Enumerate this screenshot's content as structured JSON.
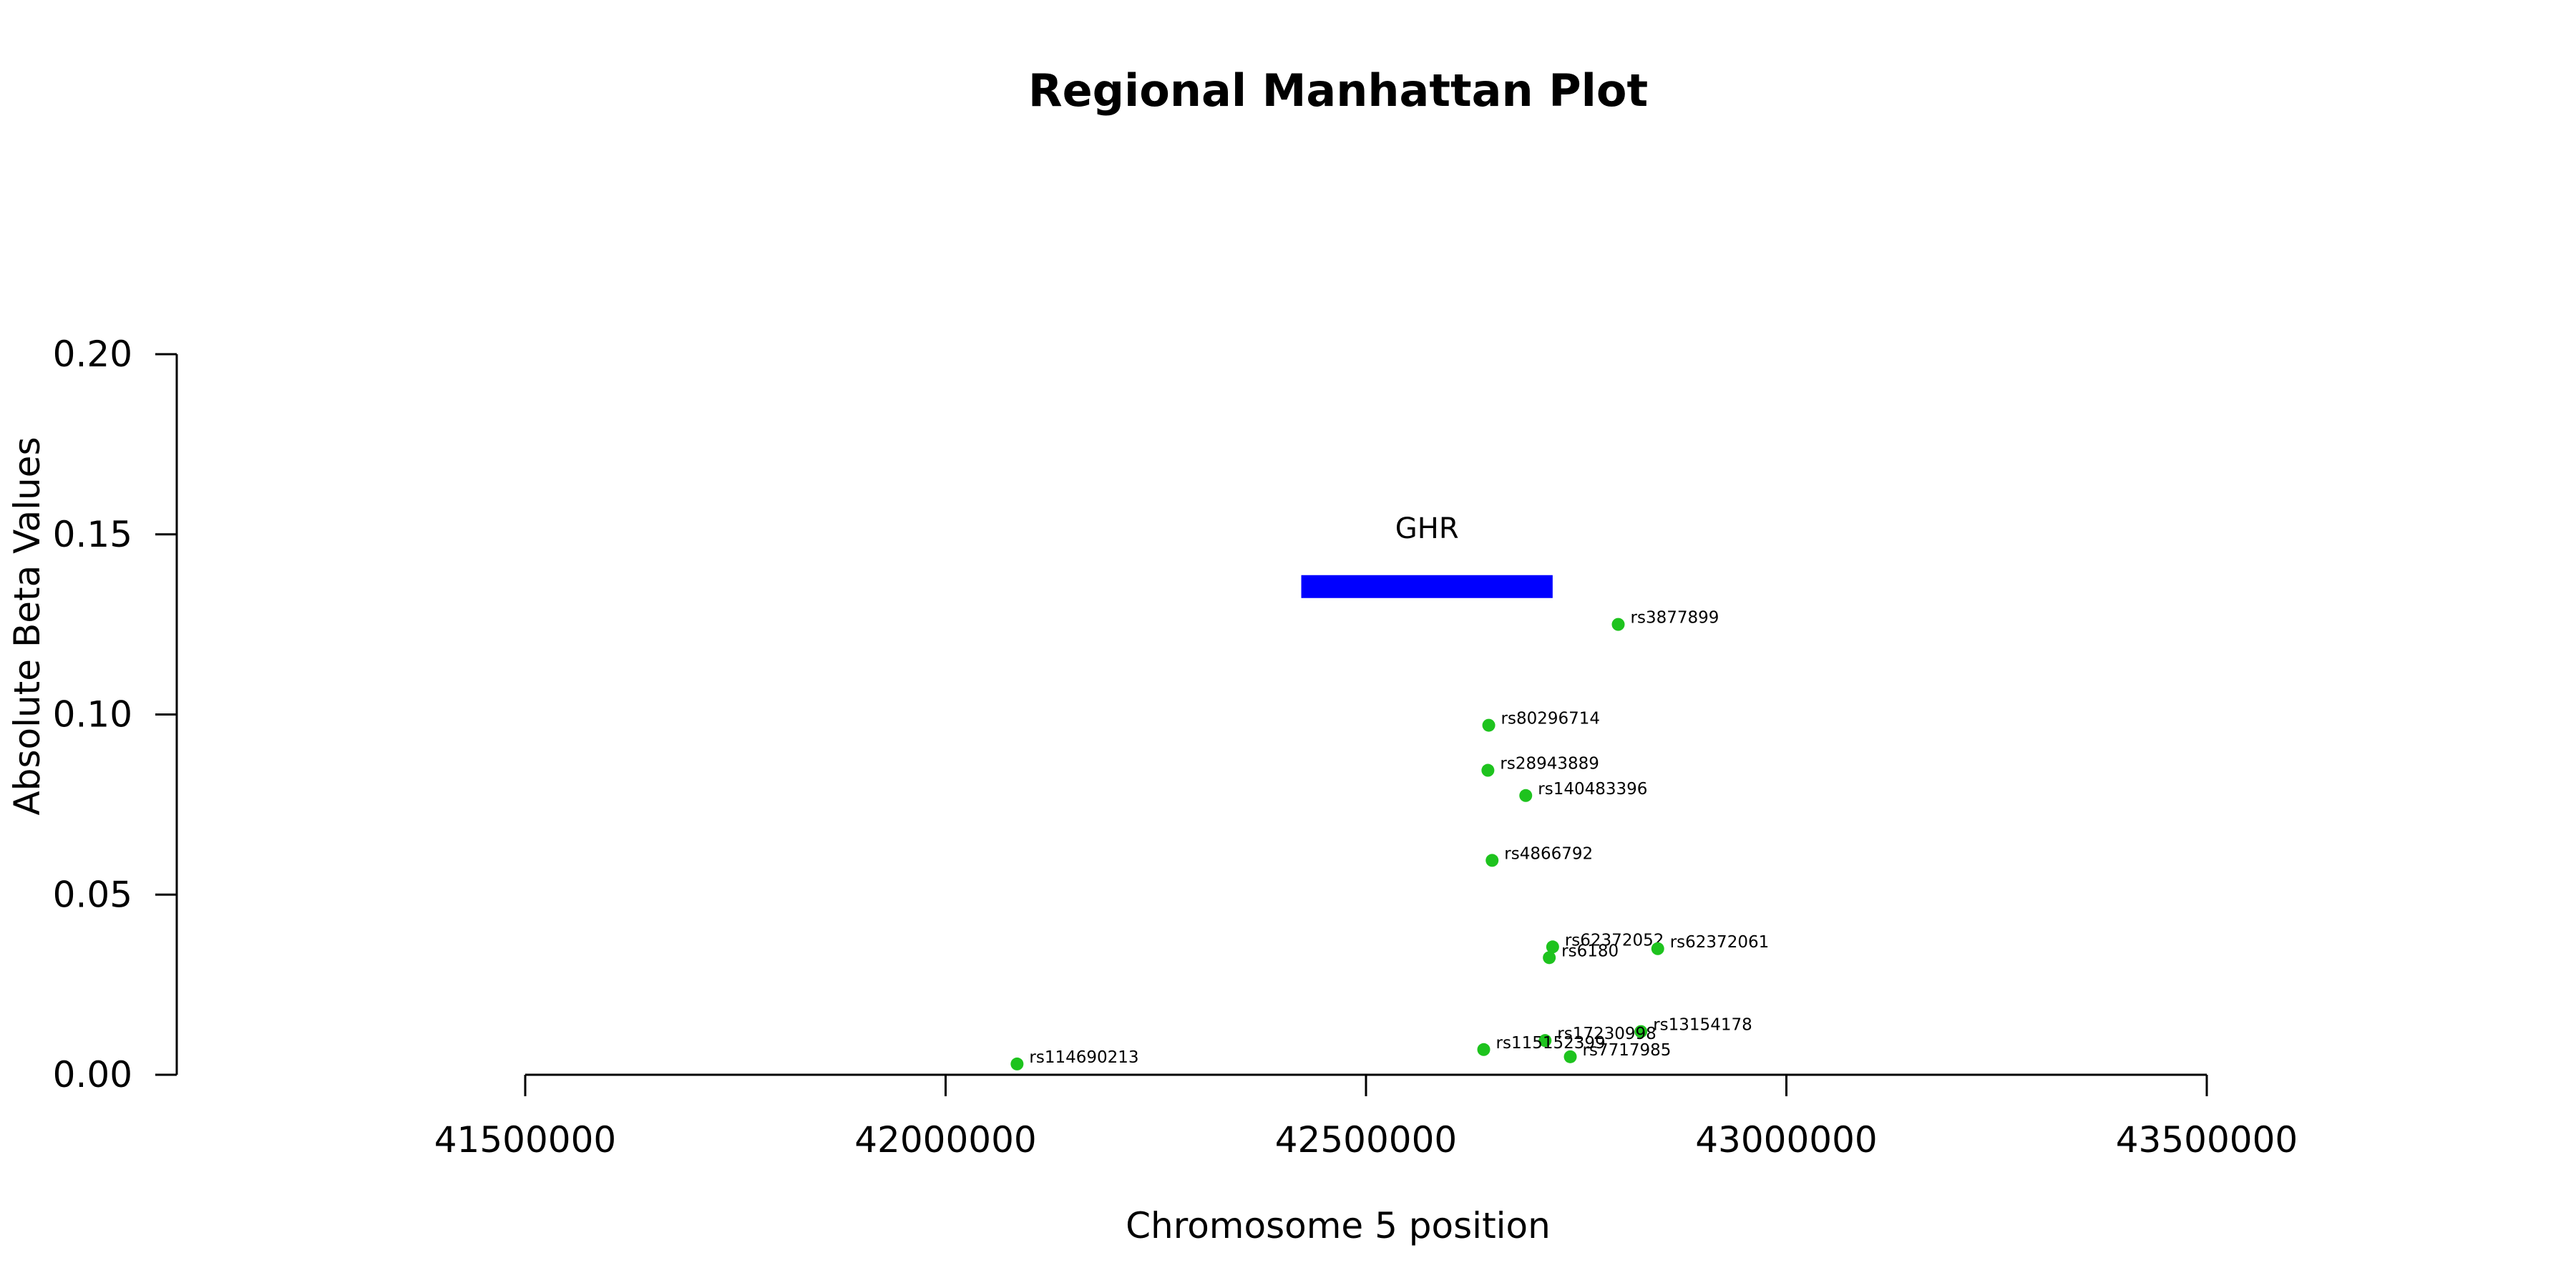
{
  "chart_data": {
    "type": "scatter",
    "title": "Regional Manhattan Plot",
    "xlabel": "Chromosome 5 position",
    "ylabel": "Absolute Beta Values",
    "xlim": [
      41500000,
      43500000
    ],
    "ylim": [
      0,
      0.2
    ],
    "x_ticks": [
      "41500000",
      "42000000",
      "42500000",
      "43000000",
      "43500000"
    ],
    "y_ticks": [
      "0.00",
      "0.05",
      "0.10",
      "0.15",
      "0.20"
    ],
    "x_tick_values": [
      41500000,
      42000000,
      42500000,
      43000000,
      43500000
    ],
    "y_tick_values": [
      0,
      0.05,
      0.1,
      0.15,
      0.2
    ],
    "grid": false,
    "point_color": "#1ec31e",
    "gene": {
      "name": "GHR",
      "start": 42423000,
      "end": 42722000,
      "y": 0.1355,
      "color": "#0000ff"
    },
    "points": [
      {
        "label": "rs114690213",
        "x": 42085000,
        "y": 0.003
      },
      {
        "label": "rs3877899",
        "x": 42800000,
        "y": 0.125
      },
      {
        "label": "rs80296714",
        "x": 42646000,
        "y": 0.097
      },
      {
        "label": "rs28943889",
        "x": 42645000,
        "y": 0.0845
      },
      {
        "label": "rs140483396",
        "x": 42690000,
        "y": 0.0775
      },
      {
        "label": "rs4866792",
        "x": 42650000,
        "y": 0.0595
      },
      {
        "label": "rs62372052",
        "x": 42722000,
        "y": 0.0355
      },
      {
        "label": "rs6180",
        "x": 42718000,
        "y": 0.0325
      },
      {
        "label": "rs62372061",
        "x": 42847000,
        "y": 0.035
      },
      {
        "label": "rs13154178",
        "x": 42827000,
        "y": 0.012
      },
      {
        "label": "rs17230998",
        "x": 42713000,
        "y": 0.0095
      },
      {
        "label": "rs115152399",
        "x": 42640000,
        "y": 0.007
      },
      {
        "label": "rs7717985",
        "x": 42743000,
        "y": 0.005
      }
    ]
  }
}
